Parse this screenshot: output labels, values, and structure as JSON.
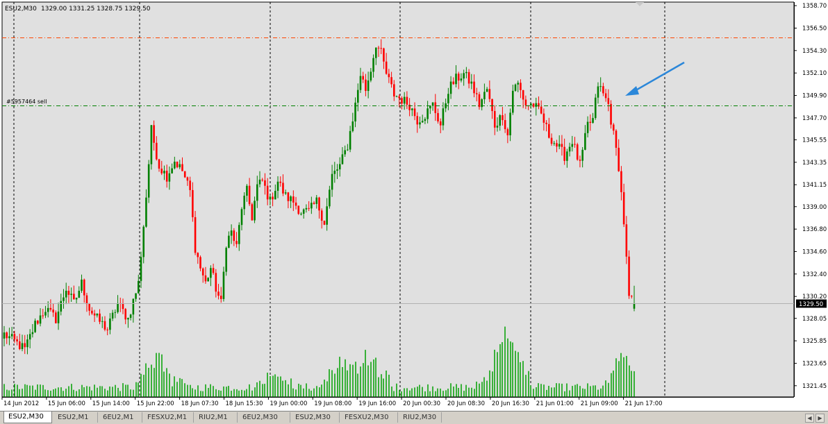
{
  "chart_title": "ESU2,M30",
  "ohlc_readout": "1329.00 1331.25 1328.75 1329.50",
  "order_label": "#5957464 sell",
  "current_price_label": "1329.50",
  "colors": {
    "bull": "#008000",
    "bear": "#ff0000",
    "volume": "#00a000",
    "grid": "#000000",
    "chart_bg": "#e0e0e0",
    "upper_line": "#ff4500",
    "order_line": "#008000",
    "arrow": "#2b87d9"
  },
  "icons": {
    "arrow": "blue-arrow-annotation-icon",
    "tab_prev": "chevron-left-icon",
    "tab_next": "chevron-right-icon"
  },
  "tabs": [
    {
      "label": "ESU2,M30",
      "active": true
    },
    {
      "label": "ESU2,M1",
      "active": false
    },
    {
      "label": "6EU2,M1",
      "active": false
    },
    {
      "label": "FESXU2,M1",
      "active": false
    },
    {
      "label": "RIU2,M1",
      "active": false
    },
    {
      "label": "6EU2,M30",
      "active": false
    },
    {
      "label": "ESU2,M30",
      "active": false
    },
    {
      "label": "FESXU2,M30",
      "active": false
    },
    {
      "label": "RIU2,M30",
      "active": false
    }
  ],
  "chart_data": {
    "type": "candlestick",
    "title": "ESU2,M30",
    "symbol": "ESU2",
    "timeframe": "M30",
    "ylim": [
      1320.35,
      1359.05
    ],
    "y_ticks": [
      "1358.70",
      "1356.50",
      "1354.30",
      "1352.10",
      "1349.90",
      "1347.70",
      "1345.55",
      "1343.35",
      "1341.15",
      "1339.00",
      "1336.80",
      "1334.60",
      "1332.40",
      "1330.20",
      "1328.05",
      "1325.85",
      "1323.65",
      "1321.45"
    ],
    "x_labels": [
      "14 Jun 2012",
      "15 Jun 06:00",
      "15 Jun 14:00",
      "15 Jun 22:00",
      "18 Jun 07:30",
      "18 Jun 15:30",
      "19 Jun 00:00",
      "19 Jun 08:00",
      "19 Jun 16:00",
      "20 Jun 00:30",
      "20 Jun 08:30",
      "20 Jun 16:30",
      "21 Jun 01:00",
      "21 Jun 09:00",
      "21 Jun 17:00"
    ],
    "horizontal_lines": [
      {
        "price": 1355.6,
        "style": "dash-dot"
      },
      {
        "price": 1348.9,
        "style": "dash-dot",
        "label": "#5957464 sell"
      }
    ],
    "current_price": 1329.5,
    "grid": "vertical dashed at session breaks",
    "ohlc_last": {
      "open": 1329.0,
      "high": 1331.25,
      "low": 1328.75,
      "close": 1329.5
    },
    "close_path": [
      [
        0,
        1326.5
      ],
      [
        4,
        1325.8
      ],
      [
        8,
        1325.0
      ],
      [
        12,
        1327.5
      ],
      [
        16,
        1329.0
      ],
      [
        20,
        1328.0
      ],
      [
        24,
        1331.0
      ],
      [
        27,
        1329.5
      ],
      [
        30,
        1331.5
      ],
      [
        33,
        1329.0
      ],
      [
        36,
        1328.0
      ],
      [
        40,
        1327.0
      ],
      [
        44,
        1329.5
      ],
      [
        48,
        1328.0
      ],
      [
        52,
        1331.5
      ],
      [
        55,
        1340.0
      ],
      [
        57,
        1346.5
      ],
      [
        60,
        1343.0
      ],
      [
        63,
        1342.0
      ],
      [
        66,
        1343.5
      ],
      [
        69,
        1342.5
      ],
      [
        72,
        1340.5
      ],
      [
        74,
        1335.0
      ],
      [
        76,
        1333.0
      ],
      [
        78,
        1331.5
      ],
      [
        80,
        1333.0
      ],
      [
        82,
        1331.0
      ],
      [
        84,
        1329.5
      ],
      [
        86,
        1335.5
      ],
      [
        88,
        1336.5
      ],
      [
        90,
        1335.0
      ],
      [
        92,
        1339.0
      ],
      [
        94,
        1340.5
      ],
      [
        96,
        1338.0
      ],
      [
        98,
        1341.0
      ],
      [
        100,
        1341.5
      ],
      [
        103,
        1339.5
      ],
      [
        106,
        1341.5
      ],
      [
        109,
        1340.0
      ],
      [
        112,
        1339.5
      ],
      [
        115,
        1338.5
      ],
      [
        118,
        1338.5
      ],
      [
        121,
        1339.5
      ],
      [
        124,
        1337.5
      ],
      [
        127,
        1342.0
      ],
      [
        130,
        1343.0
      ],
      [
        133,
        1345.0
      ],
      [
        136,
        1349.0
      ],
      [
        138,
        1352.0
      ],
      [
        140,
        1350.5
      ],
      [
        142,
        1352.5
      ],
      [
        144,
        1355.0
      ],
      [
        146,
        1354.0
      ],
      [
        148,
        1352.0
      ],
      [
        151,
        1350.0
      ],
      [
        154,
        1349.5
      ],
      [
        157,
        1349.0
      ],
      [
        160,
        1347.5
      ],
      [
        163,
        1348.0
      ],
      [
        166,
        1349.0
      ],
      [
        169,
        1347.0
      ],
      [
        172,
        1350.5
      ],
      [
        175,
        1351.5
      ],
      [
        178,
        1352.0
      ],
      [
        181,
        1351.0
      ],
      [
        184,
        1349.0
      ],
      [
        187,
        1350.5
      ],
      [
        190,
        1347.0
      ],
      [
        193,
        1348.0
      ],
      [
        195,
        1346.0
      ],
      [
        197,
        1350.5
      ],
      [
        199,
        1351.0
      ],
      [
        202,
        1349.0
      ],
      [
        205,
        1349.0
      ],
      [
        208,
        1348.0
      ],
      [
        211,
        1346.0
      ],
      [
        214,
        1345.0
      ],
      [
        217,
        1344.0
      ],
      [
        220,
        1345.5
      ],
      [
        223,
        1343.0
      ],
      [
        226,
        1347.0
      ],
      [
        228,
        1347.5
      ],
      [
        230,
        1351.0
      ],
      [
        232,
        1350.0
      ],
      [
        234,
        1349.0
      ],
      [
        236,
        1346.0
      ],
      [
        238,
        1343.0
      ],
      [
        240,
        1337.5
      ],
      [
        242,
        1330.0
      ],
      [
        244,
        1329.5
      ]
    ],
    "series_note": "30-minute candles with per-bar volume histogram"
  }
}
